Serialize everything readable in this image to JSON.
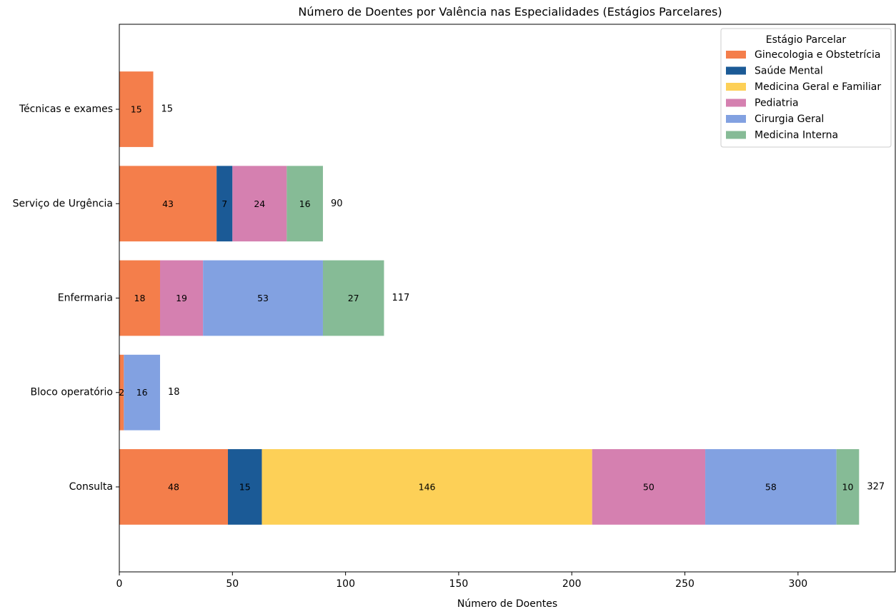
{
  "chart_data": {
    "type": "bar",
    "orientation": "horizontal",
    "stacked": true,
    "title": "Número de Doentes por Valência nas Especialidades (Estágios Parcelares)",
    "xlabel": "Número de Doentes",
    "ylabel": "",
    "xlim": [
      0,
      343
    ],
    "xticks": [
      0,
      50,
      100,
      150,
      200,
      250,
      300
    ],
    "categories": [
      "Consulta",
      "Bloco operatório",
      "Enfermaria",
      "Serviço de Urgência",
      "Técnicas e exames"
    ],
    "series": [
      {
        "name": "Ginecologia e Obstetrícia",
        "color": "#F47E4B",
        "values": [
          48,
          2,
          18,
          43,
          15
        ]
      },
      {
        "name": "Saúde Mental",
        "color": "#1B5A96",
        "values": [
          15,
          0,
          0,
          7,
          0
        ]
      },
      {
        "name": "Medicina Geral e Familiar",
        "color": "#FDD057",
        "values": [
          146,
          0,
          0,
          0,
          0
        ]
      },
      {
        "name": "Pediatria",
        "color": "#D580B0",
        "values": [
          50,
          0,
          19,
          24,
          0
        ]
      },
      {
        "name": "Cirurgia Geral",
        "color": "#82A1E1",
        "values": [
          58,
          16,
          53,
          0,
          0
        ]
      },
      {
        "name": "Medicina Interna",
        "color": "#86BB96",
        "values": [
          10,
          0,
          27,
          16,
          0
        ]
      }
    ],
    "totals": [
      327,
      18,
      117,
      90,
      15
    ],
    "legend": {
      "title": "Estágio Parcelar",
      "placement": "top-right"
    },
    "grid": false
  }
}
